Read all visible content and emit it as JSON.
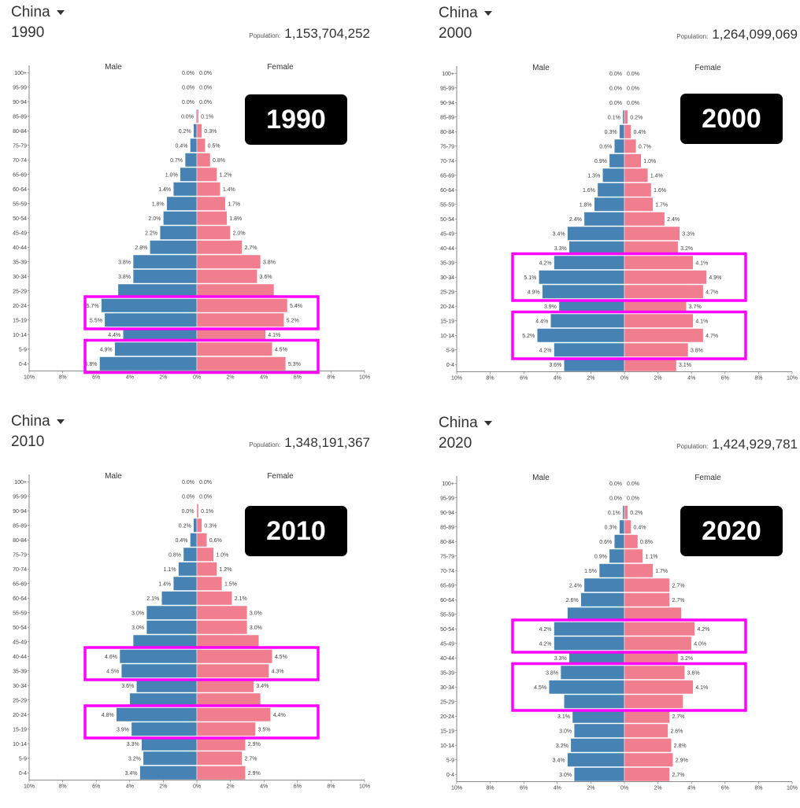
{
  "colors": {
    "male": "#4682b4",
    "female": "#f07e8f",
    "highlight": "#ff00ff",
    "badge_bg": "#000000"
  },
  "chart_data": [
    {
      "type": "bar",
      "country": "China",
      "year": "1990",
      "population_label": "Population:",
      "population": "1,153,704,252",
      "badge": "1990",
      "male_label": "Male",
      "female_label": "Female",
      "xlim": [
        -10,
        10
      ],
      "x_ticks": [
        "10%",
        "8%",
        "6%",
        "4%",
        "2%",
        "0%",
        "2%",
        "4%",
        "6%",
        "8%",
        "10%"
      ],
      "categories": [
        "100+",
        "95-99",
        "90-94",
        "85-89",
        "80-84",
        "75-79",
        "70-74",
        "65-69",
        "60-64",
        "55-59",
        "50-54",
        "45-49",
        "40-44",
        "35-39",
        "30-34",
        "25-29",
        "20-24",
        "15-19",
        "10-14",
        "5-9",
        "0-4"
      ],
      "male_labels": [
        "0.0%",
        "0.0%",
        "0.0%",
        "0.0%",
        "0.2%",
        "0.4%",
        "0.7%",
        "1.0%",
        "1.4%",
        "1.8%",
        "2.0%",
        "2.2%",
        "2.8%",
        "3.8%",
        "3.8%",
        "",
        "5.7%",
        "5.5%",
        "4.4%",
        "4.9%",
        "5.8%"
      ],
      "female_labels": [
        "0.0%",
        "0.0%",
        "0.0%",
        "0.1%",
        "0.3%",
        "0.5%",
        "0.8%",
        "1.2%",
        "1.4%",
        "1.7%",
        "1.8%",
        "2.0%",
        "2.7%",
        "3.8%",
        "3.6%",
        "",
        "5.4%",
        "5.2%",
        "4.1%",
        "4.5%",
        "5.3%"
      ],
      "series": [
        {
          "name": "Male",
          "values": [
            0.0,
            0.0,
            0.0,
            0.05,
            0.2,
            0.4,
            0.7,
            1.0,
            1.4,
            1.8,
            2.0,
            2.2,
            2.8,
            3.8,
            3.8,
            4.7,
            5.7,
            5.5,
            4.4,
            4.9,
            5.8
          ]
        },
        {
          "name": "Female",
          "values": [
            0.0,
            0.0,
            0.0,
            0.1,
            0.3,
            0.5,
            0.8,
            1.2,
            1.4,
            1.7,
            1.8,
            2.0,
            2.7,
            3.8,
            3.6,
            4.6,
            5.4,
            5.2,
            4.1,
            4.5,
            5.3
          ]
        }
      ],
      "highlights": [
        [
          "20-24",
          "15-19"
        ],
        [
          "5-9",
          "0-4"
        ]
      ]
    },
    {
      "type": "bar",
      "country": "China",
      "year": "2000",
      "population_label": "Population:",
      "population": "1,264,099,069",
      "badge": "2000",
      "male_label": "Male",
      "female_label": "Female",
      "xlim": [
        -10,
        10
      ],
      "x_ticks": [
        "10%",
        "8%",
        "6%",
        "4%",
        "2%",
        "0%",
        "2%",
        "4%",
        "6%",
        "8%",
        "10%"
      ],
      "categories": [
        "100+",
        "95-99",
        "90-94",
        "85-89",
        "80-84",
        "75-79",
        "70-74",
        "65-69",
        "60-64",
        "55-59",
        "50-54",
        "45-49",
        "40-44",
        "35-39",
        "30-34",
        "25-29",
        "20-24",
        "15-19",
        "10-14",
        "5-9",
        "0-4"
      ],
      "male_labels": [
        "0.0%",
        "0.0%",
        "0.0%",
        "0.1%",
        "0.3%",
        "0.6%",
        "0.9%",
        "1.3%",
        "1.6%",
        "1.8%",
        "2.4%",
        "3.4%",
        "3.3%",
        "4.2%",
        "5.1%",
        "4.9%",
        "3.9%",
        "4.4%",
        "5.2%",
        "4.2%",
        "3.6%"
      ],
      "female_labels": [
        "0.0%",
        "0.0%",
        "0.0%",
        "0.2%",
        "0.4%",
        "0.7%",
        "1.0%",
        "1.4%",
        "1.6%",
        "1.7%",
        "2.4%",
        "3.3%",
        "3.2%",
        "4.1%",
        "4.9%",
        "4.7%",
        "3.7%",
        "4.1%",
        "4.7%",
        "3.8%",
        "3.1%"
      ],
      "series": [
        {
          "name": "Male",
          "values": [
            0.0,
            0.0,
            0.0,
            0.1,
            0.3,
            0.6,
            0.9,
            1.3,
            1.6,
            1.8,
            2.4,
            3.4,
            3.3,
            4.2,
            5.1,
            4.9,
            3.9,
            4.4,
            5.2,
            4.2,
            3.6
          ]
        },
        {
          "name": "Female",
          "values": [
            0.0,
            0.0,
            0.0,
            0.2,
            0.4,
            0.7,
            1.0,
            1.4,
            1.6,
            1.7,
            2.4,
            3.3,
            3.2,
            4.1,
            4.9,
            4.7,
            3.7,
            4.1,
            4.7,
            3.8,
            3.1
          ]
        }
      ],
      "highlights": [
        [
          "35-39",
          "25-29"
        ],
        [
          "15-19",
          "5-9"
        ]
      ]
    },
    {
      "type": "bar",
      "country": "China",
      "year": "2010",
      "population_label": "Population:",
      "population": "1,348,191,367",
      "badge": "2010",
      "male_label": "Male",
      "female_label": "Female",
      "xlim": [
        -10,
        10
      ],
      "x_ticks": [
        "10%",
        "8%",
        "6%",
        "4%",
        "2%",
        "0%",
        "2%",
        "4%",
        "6%",
        "8%",
        "10%"
      ],
      "categories": [
        "100+",
        "95-99",
        "90-94",
        "85-89",
        "80-84",
        "75-79",
        "70-74",
        "65-69",
        "60-64",
        "55-59",
        "50-54",
        "45-49",
        "40-44",
        "35-39",
        "30-34",
        "25-29",
        "20-24",
        "15-19",
        "10-14",
        "5-9",
        "0-4"
      ],
      "male_labels": [
        "0.0%",
        "0.0%",
        "0.0%",
        "0.2%",
        "0.4%",
        "0.8%",
        "1.1%",
        "1.4%",
        "2.1%",
        "3.0%",
        "3.0%",
        "",
        "4.6%",
        "4.5%",
        "3.6%",
        "",
        "4.8%",
        "3.9%",
        "3.3%",
        "3.2%",
        "3.4%"
      ],
      "female_labels": [
        "0.0%",
        "0.0%",
        "0.1%",
        "0.3%",
        "0.6%",
        "1.0%",
        "1.2%",
        "1.5%",
        "2.1%",
        "3.0%",
        "3.0%",
        "",
        "4.5%",
        "4.3%",
        "3.4%",
        "",
        "4.4%",
        "3.5%",
        "2.9%",
        "2.7%",
        "2.9%"
      ],
      "series": [
        {
          "name": "Male",
          "values": [
            0.0,
            0.0,
            0.02,
            0.2,
            0.4,
            0.8,
            1.1,
            1.4,
            2.1,
            3.0,
            3.0,
            3.8,
            4.6,
            4.5,
            3.6,
            4.0,
            4.8,
            3.9,
            3.3,
            3.2,
            3.4
          ]
        },
        {
          "name": "Female",
          "values": [
            0.0,
            0.0,
            0.1,
            0.3,
            0.6,
            1.0,
            1.2,
            1.5,
            2.1,
            3.0,
            3.0,
            3.7,
            4.5,
            4.3,
            3.4,
            3.8,
            4.4,
            3.5,
            2.9,
            2.7,
            2.9
          ]
        }
      ],
      "highlights": [
        [
          "40-44",
          "35-39"
        ],
        [
          "20-24",
          "15-19"
        ]
      ]
    },
    {
      "type": "bar",
      "country": "China",
      "year": "2020",
      "population_label": "Population:",
      "population": "1,424,929,781",
      "badge": "2020",
      "male_label": "Male",
      "female_label": "Female",
      "xlim": [
        -10,
        10
      ],
      "x_ticks": [
        "10%",
        "8%",
        "6%",
        "4%",
        "2%",
        "0%",
        "2%",
        "4%",
        "6%",
        "8%",
        "10%"
      ],
      "categories": [
        "100+",
        "95-99",
        "90-94",
        "85-89",
        "80-84",
        "75-79",
        "70-74",
        "65-69",
        "60-64",
        "55-59",
        "50-54",
        "45-49",
        "40-44",
        "35-39",
        "30-34",
        "25-29",
        "20-24",
        "15-19",
        "10-14",
        "5-9",
        "0-4"
      ],
      "male_labels": [
        "0.0%",
        "0.0%",
        "0.1%",
        "0.3%",
        "0.6%",
        "0.9%",
        "1.5%",
        "2.4%",
        "2.6%",
        "",
        "4.2%",
        "4.2%",
        "3.3%",
        "3.8%",
        "4.5%",
        "",
        "3.1%",
        "3.0%",
        "3.2%",
        "3.4%",
        "3.0%"
      ],
      "female_labels": [
        "0.0%",
        "0.0%",
        "0.2%",
        "0.4%",
        "0.8%",
        "1.1%",
        "1.7%",
        "2.7%",
        "2.7%",
        "",
        "4.2%",
        "4.0%",
        "3.2%",
        "3.6%",
        "4.1%",
        "",
        "2.7%",
        "2.6%",
        "2.8%",
        "2.9%",
        "2.7%"
      ],
      "series": [
        {
          "name": "Male",
          "values": [
            0.0,
            0.0,
            0.1,
            0.3,
            0.6,
            0.9,
            1.5,
            2.4,
            2.6,
            3.4,
            4.2,
            4.2,
            3.3,
            3.8,
            4.5,
            3.6,
            3.1,
            3.0,
            3.2,
            3.4,
            3.0
          ]
        },
        {
          "name": "Female",
          "values": [
            0.0,
            0.0,
            0.2,
            0.4,
            0.8,
            1.1,
            1.7,
            2.7,
            2.7,
            3.4,
            4.2,
            4.0,
            3.2,
            3.6,
            4.1,
            3.5,
            2.7,
            2.6,
            2.8,
            2.9,
            2.7
          ]
        }
      ],
      "highlights": [
        [
          "50-54",
          "45-49"
        ],
        [
          "35-39",
          "25-29"
        ]
      ]
    }
  ]
}
